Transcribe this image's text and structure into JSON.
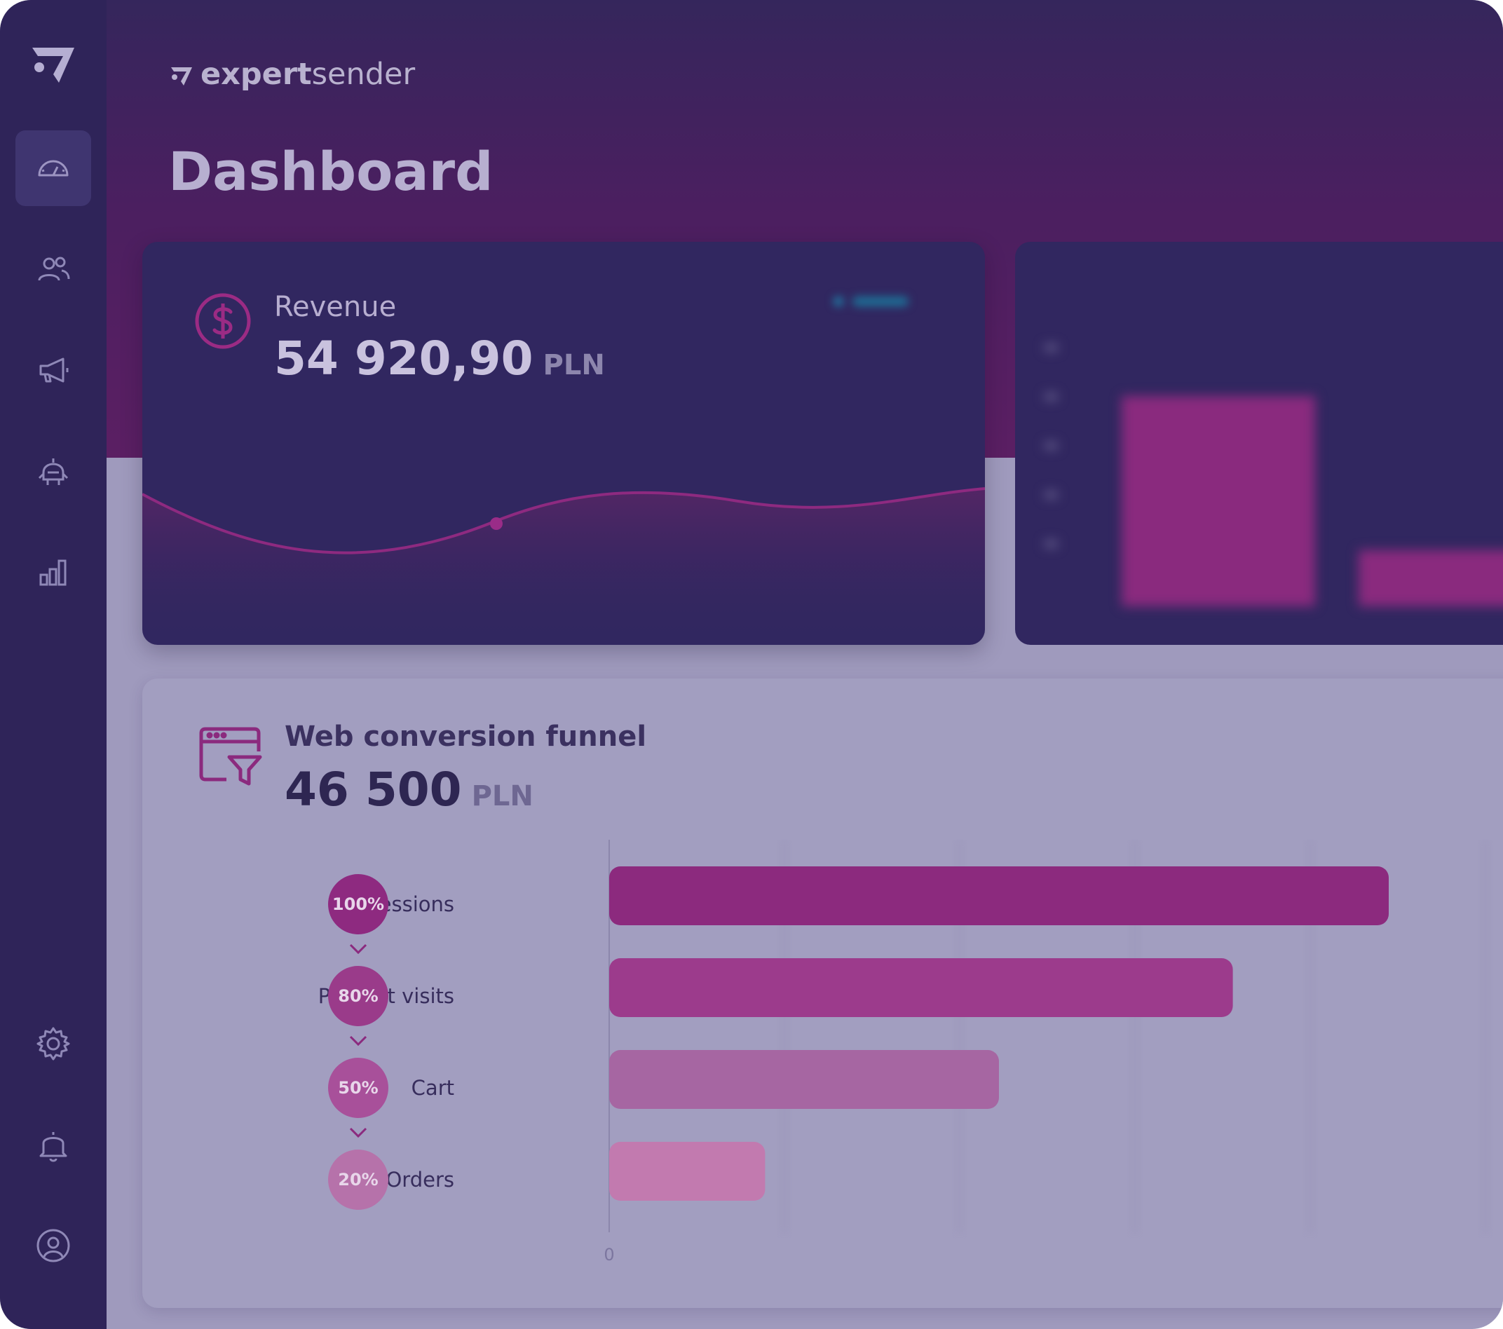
{
  "brand": {
    "name_bold": "expert",
    "name_light": "sender"
  },
  "page": {
    "title": "Dashboard"
  },
  "sidebar": {
    "items": [
      {
        "name": "dashboard-icon",
        "active": true
      },
      {
        "name": "users-icon",
        "active": false
      },
      {
        "name": "megaphone-icon",
        "active": false
      },
      {
        "name": "robot-icon",
        "active": false
      },
      {
        "name": "bar-chart-icon",
        "active": false
      }
    ],
    "bottom_items": [
      {
        "name": "gear-icon"
      },
      {
        "name": "bell-icon"
      },
      {
        "name": "user-icon"
      }
    ]
  },
  "revenue": {
    "label": "Revenue",
    "value": "54 920,90",
    "currency": "PLN"
  },
  "funnel": {
    "title": "Web conversion funnel",
    "value": "46 500",
    "currency": "PLN",
    "stages": [
      {
        "label": "Sessions",
        "percent": "100%"
      },
      {
        "label": "Product visits",
        "percent": "80%"
      },
      {
        "label": "Cart",
        "percent": "50%"
      },
      {
        "label": "Orders",
        "percent": "20%"
      }
    ]
  },
  "colors": {
    "sidebar": "#2f2459",
    "card_dark": "#312760",
    "accent_magenta": "#8b2a7e",
    "funnel_card": "#a29ec0"
  },
  "chart_data": {
    "type": "bar",
    "orientation": "horizontal",
    "categories": [
      "Sessions",
      "Product visits",
      "Cart",
      "Orders"
    ],
    "values": [
      100,
      80,
      50,
      20
    ],
    "x_ticks": [
      "0"
    ],
    "series_colors": [
      "#8c2a7e",
      "#9c3b8c",
      "#a666a2",
      "#c27aaf"
    ]
  }
}
